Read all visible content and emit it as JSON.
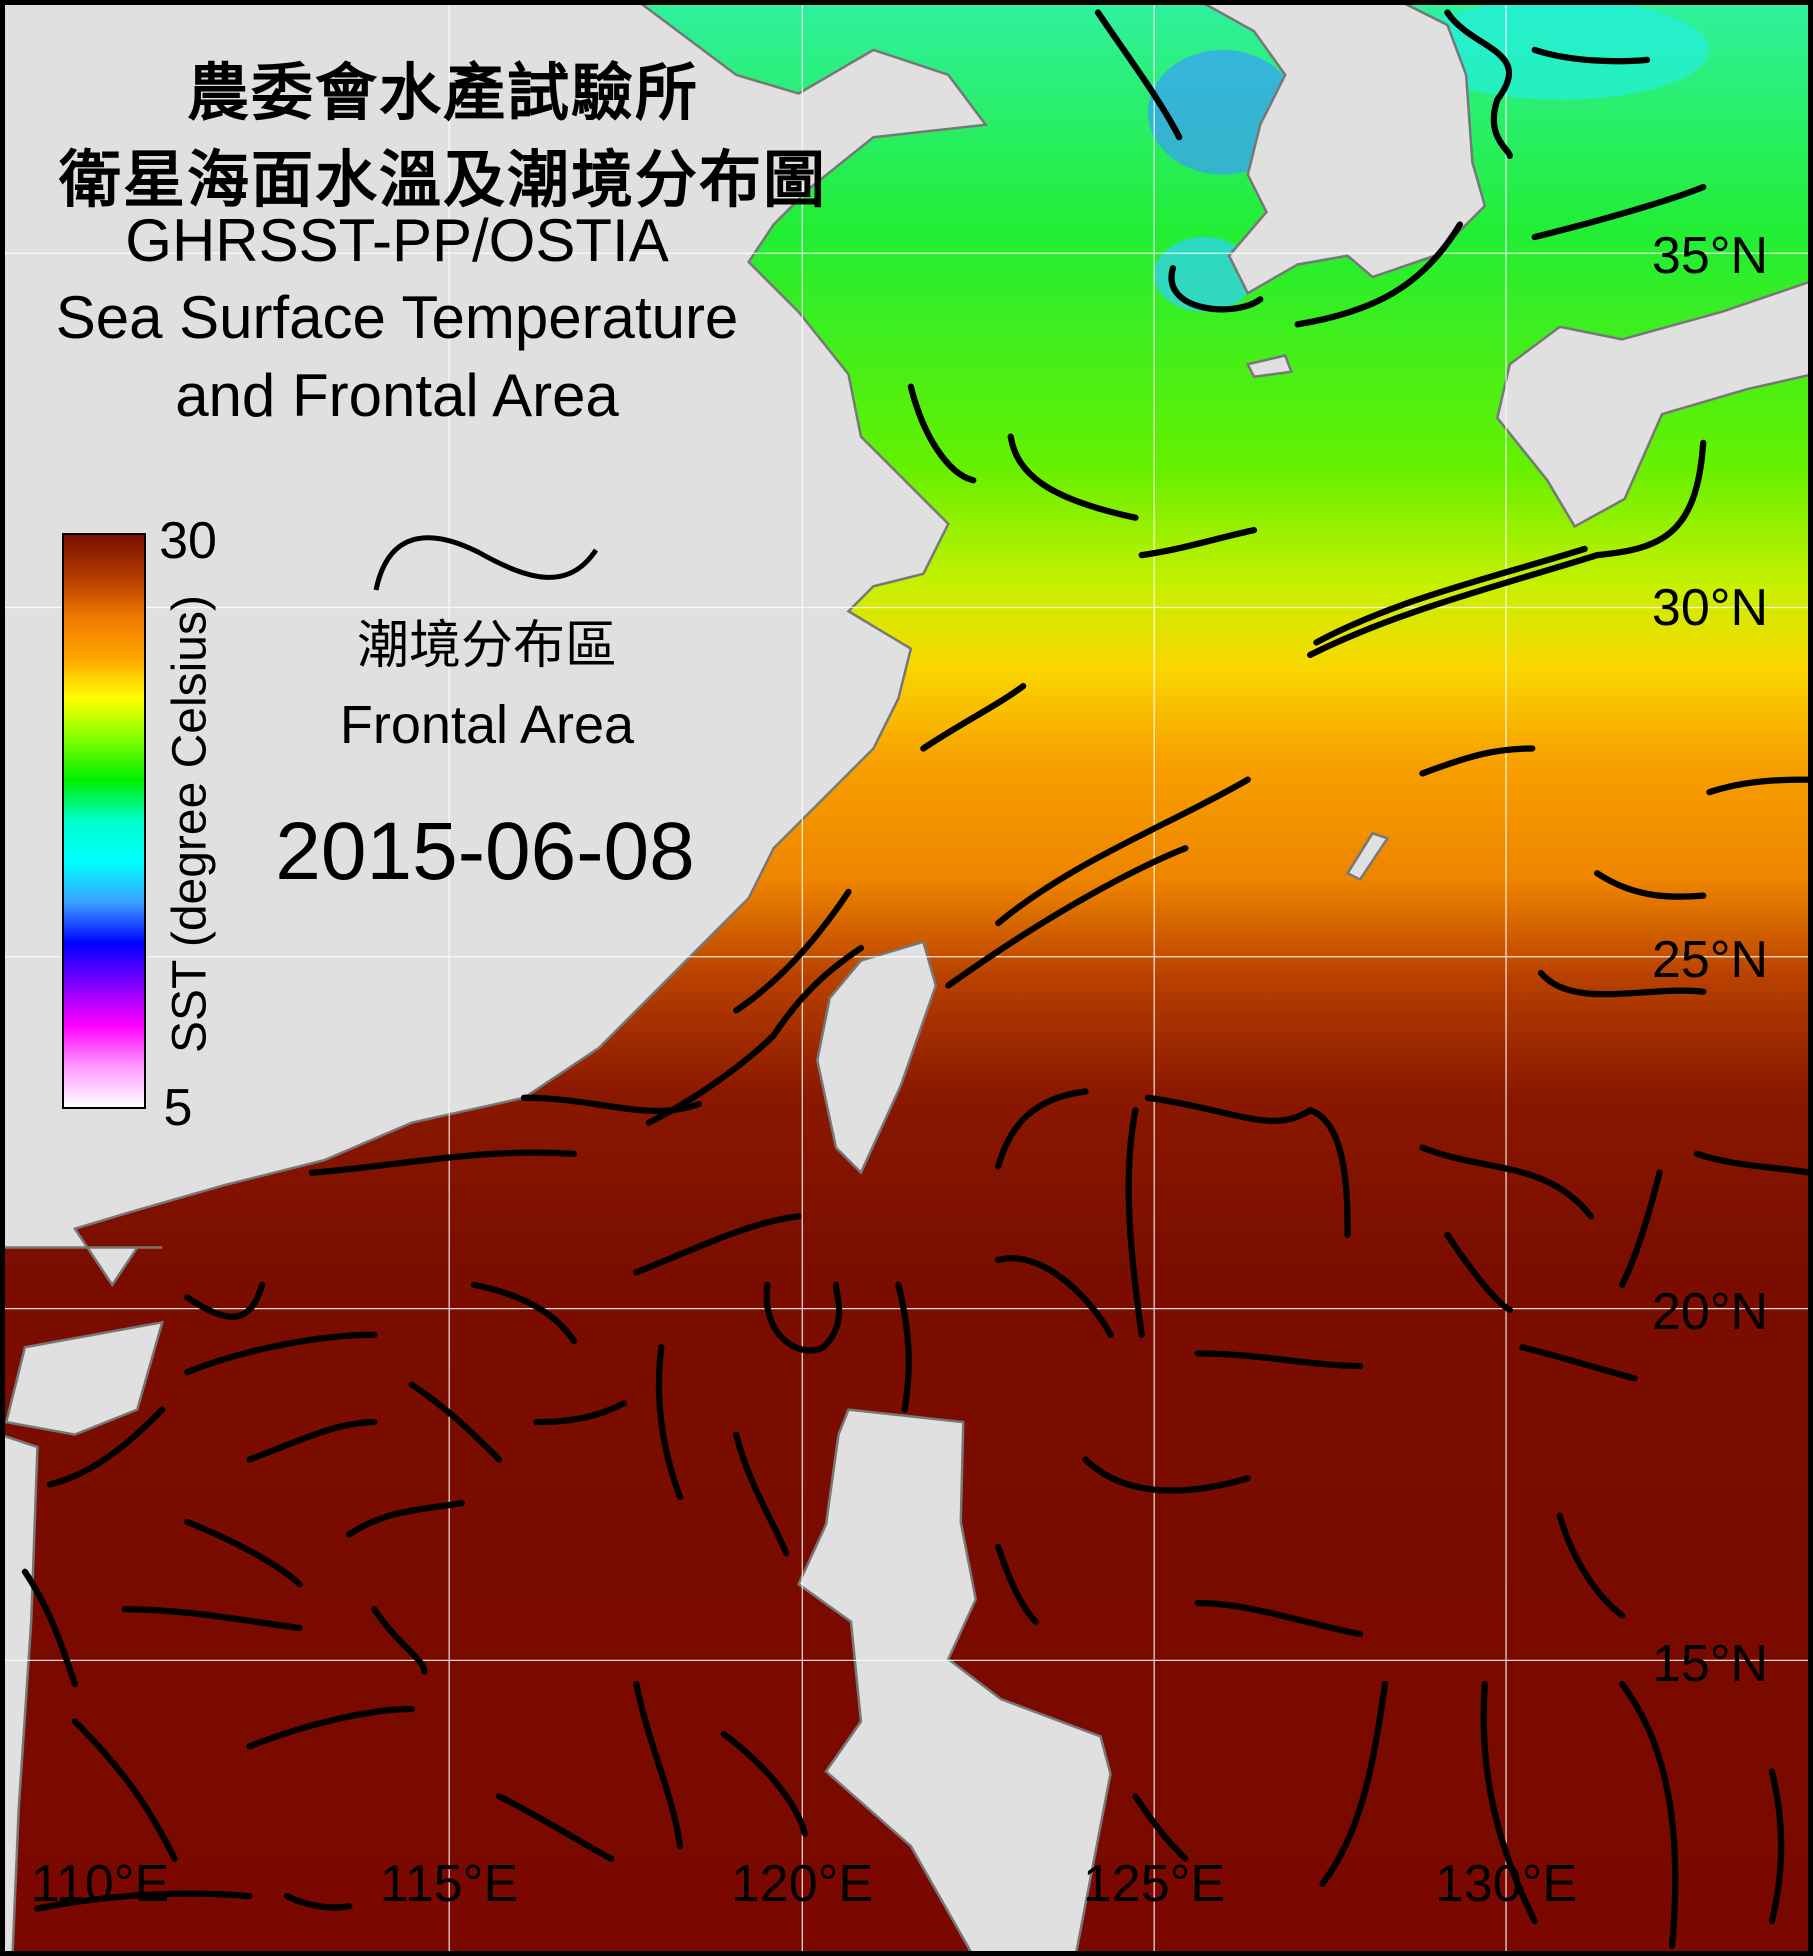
{
  "title": {
    "institute_zh": "農委會水產試驗所",
    "map_title_zh": "衛星海面水溫及潮境分布圖",
    "dataset": "GHRSST-PP/OSTIA",
    "title_en_line1": "Sea Surface Temperature",
    "title_en_line2": "and Frontal Area"
  },
  "legend": {
    "icon": "frontal-line-icon",
    "label_zh": "潮境分布區",
    "label_en": "Frontal Area"
  },
  "date": "2015-06-08",
  "colorbar": {
    "label": "SST (degree Celsius)",
    "max": "30",
    "min": "5",
    "colors": [
      "#7a1000",
      "#b03a00",
      "#f07800",
      "#ffa500",
      "#ffff00",
      "#80ff00",
      "#00ee00",
      "#00ffcc",
      "#00ffff",
      "#3aa0ff",
      "#0000ff",
      "#8000ff",
      "#ff00ff",
      "#ff99ff",
      "#ffffff"
    ]
  },
  "axes": {
    "latitude_labels": [
      "35°N",
      "30°N",
      "25°N",
      "20°N",
      "15°N"
    ],
    "longitude_labels": [
      "110°E",
      "115°E",
      "120°E",
      "125°E",
      "130°E"
    ]
  },
  "colors": {
    "land": "#e0e0e0",
    "front_lines": "#000000",
    "grid": "#ffffff"
  }
}
